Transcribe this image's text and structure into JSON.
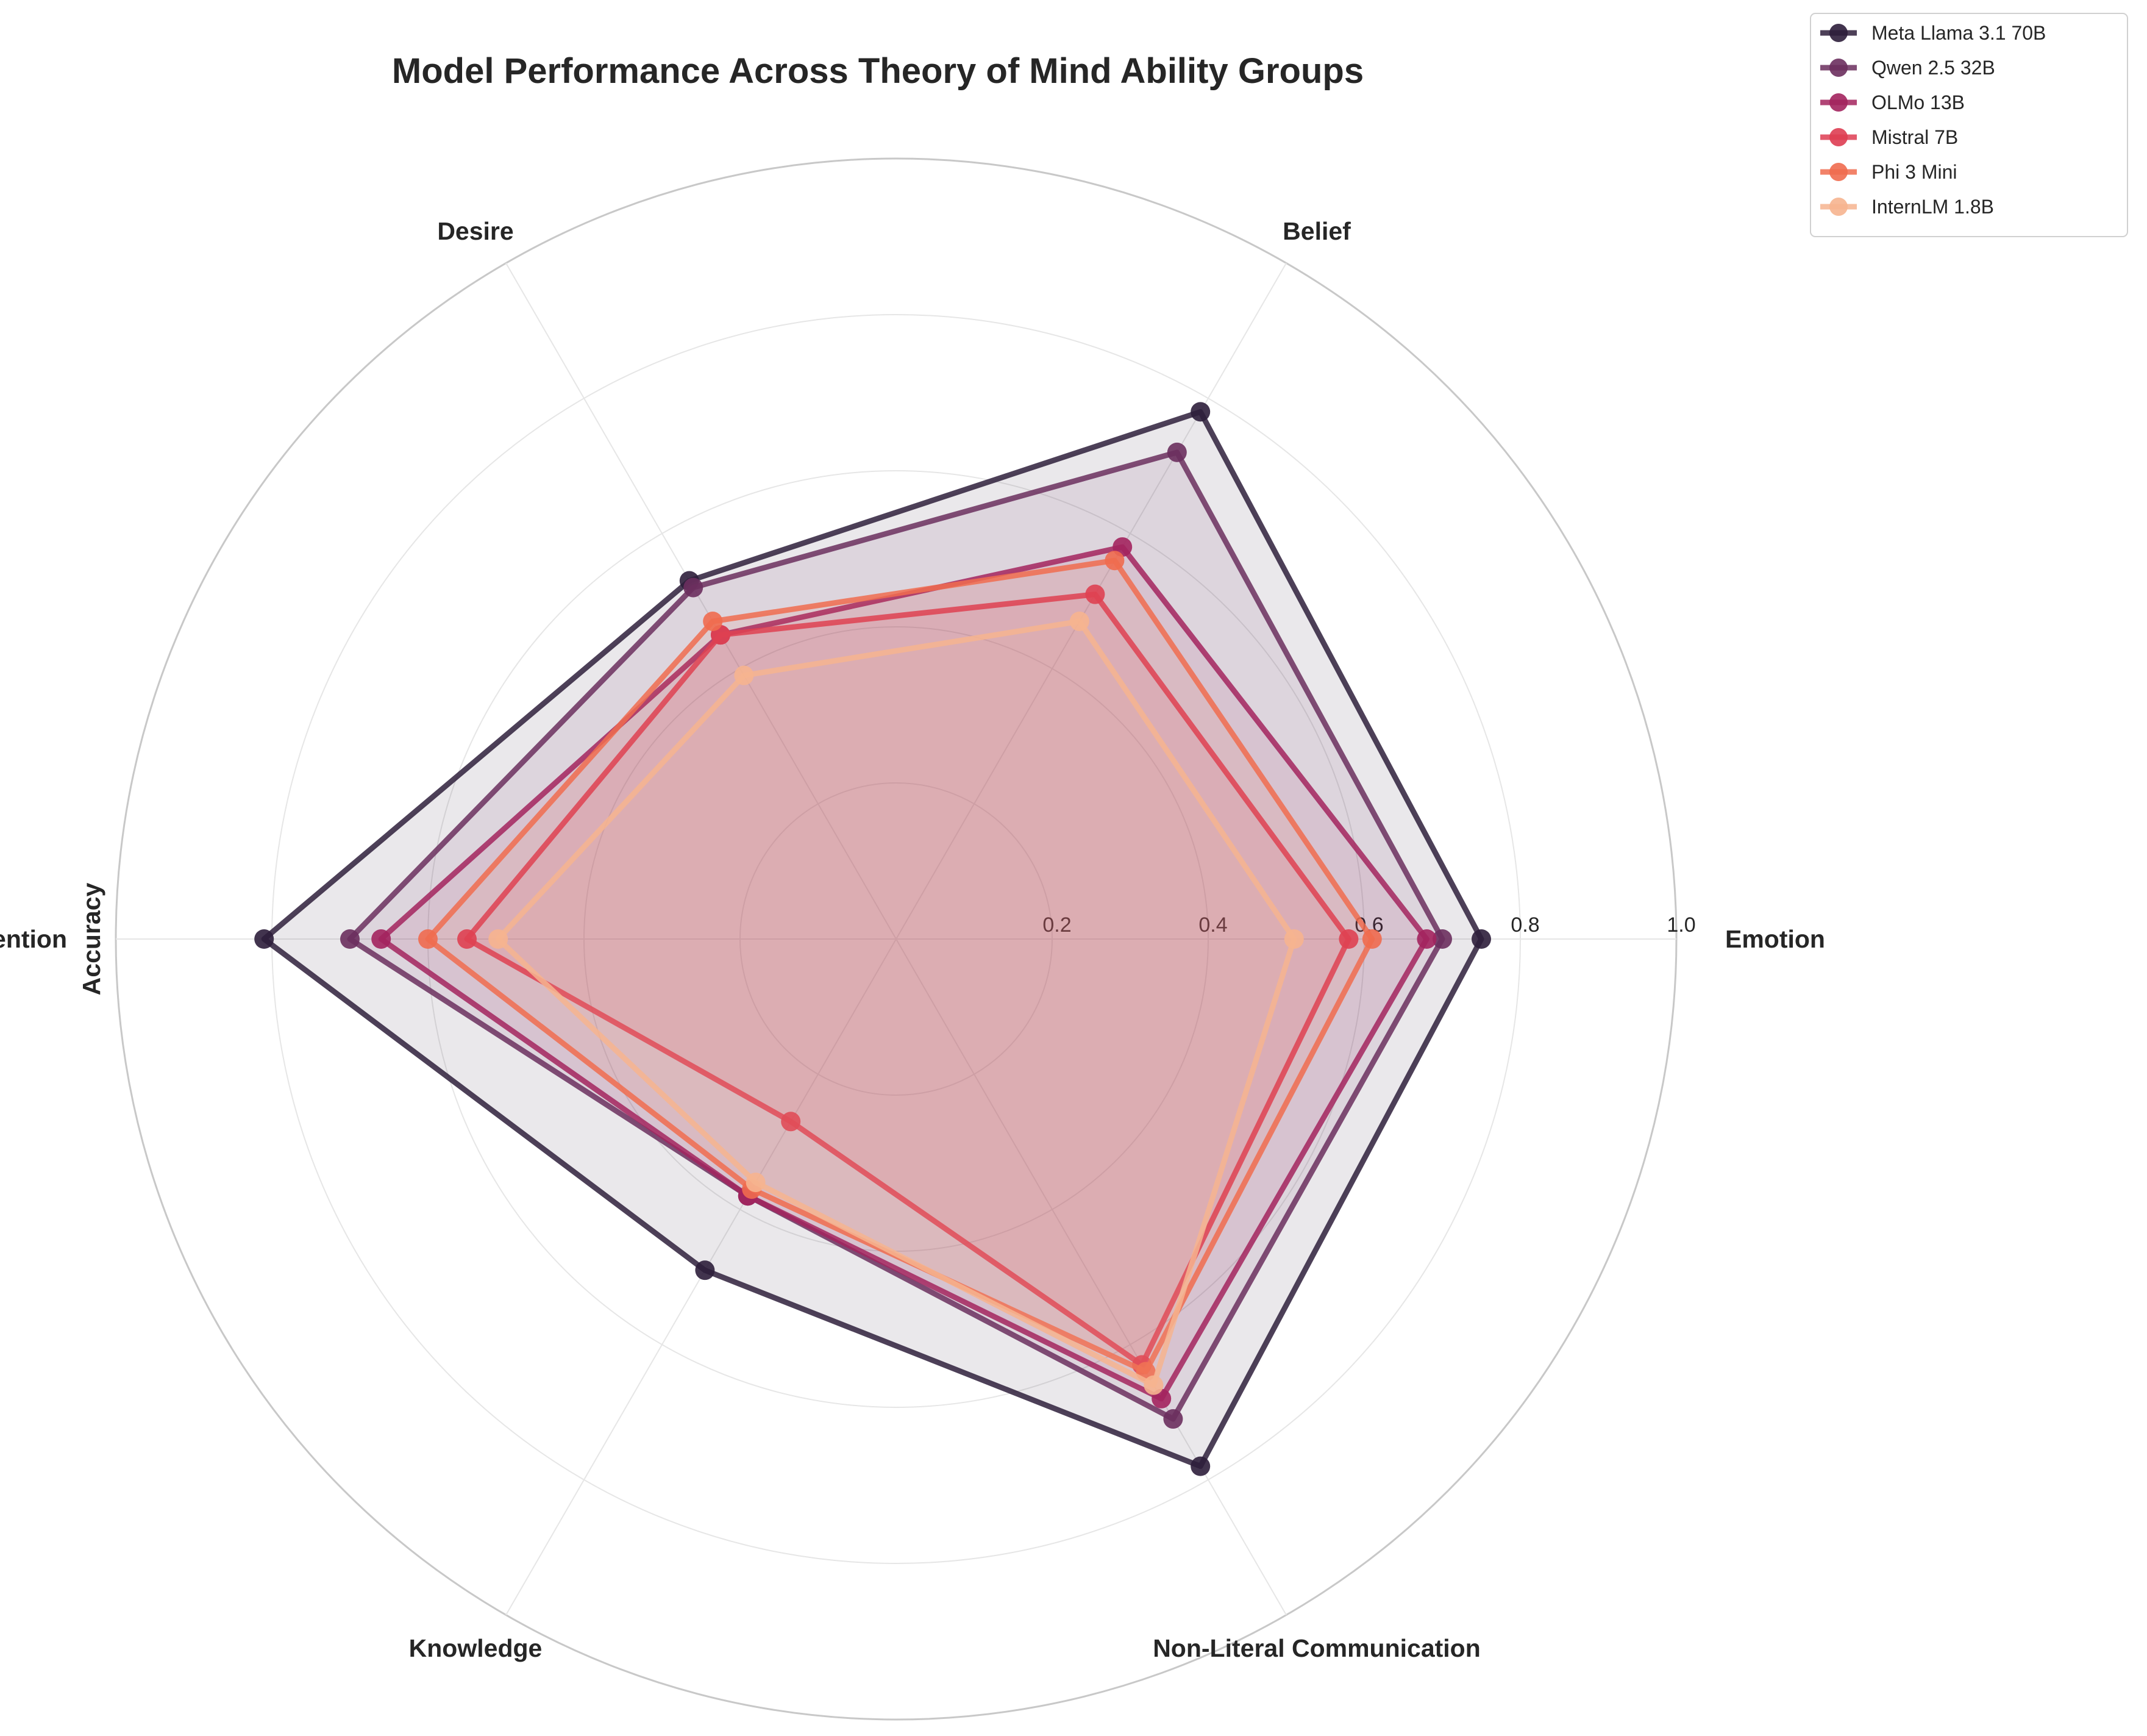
{
  "chart_data": {
    "type": "radar",
    "title": "Model Performance Across Theory of Mind Ability Groups",
    "ylabel": "Accuracy",
    "categories": [
      "Emotion",
      "Belief",
      "Desire",
      "Intention",
      "Knowledge",
      "Non-Literal Communication"
    ],
    "rlim": [
      0,
      1.0
    ],
    "rticks": [
      0.2,
      0.4,
      0.6,
      0.8,
      1.0
    ],
    "rtick_labels": [
      "0.2",
      "0.4",
      "0.6",
      "0.8",
      "1.0"
    ],
    "grid": true,
    "legend_position": "top-right",
    "series": [
      {
        "name": "Meta Llama 3.1 70B",
        "color": "#2e1e3b",
        "values": [
          0.75,
          0.78,
          0.53,
          0.81,
          0.49,
          0.78
        ]
      },
      {
        "name": "Qwen 2.5 32B",
        "color": "#6b2f5e",
        "values": [
          0.7,
          0.72,
          0.52,
          0.7,
          0.38,
          0.71
        ]
      },
      {
        "name": "OLMo 13B",
        "color": "#a3245e",
        "values": [
          0.68,
          0.58,
          0.45,
          0.66,
          0.38,
          0.68
        ]
      },
      {
        "name": "Mistral 7B",
        "color": "#de3d52",
        "values": [
          0.58,
          0.51,
          0.45,
          0.55,
          0.27,
          0.63
        ]
      },
      {
        "name": "Phi 3 Mini",
        "color": "#f06c4f",
        "values": [
          0.61,
          0.56,
          0.47,
          0.6,
          0.37,
          0.64
        ]
      },
      {
        "name": "InternLM 1.8B",
        "color": "#f6b48f",
        "values": [
          0.51,
          0.47,
          0.39,
          0.51,
          0.36,
          0.66
        ]
      }
    ]
  }
}
